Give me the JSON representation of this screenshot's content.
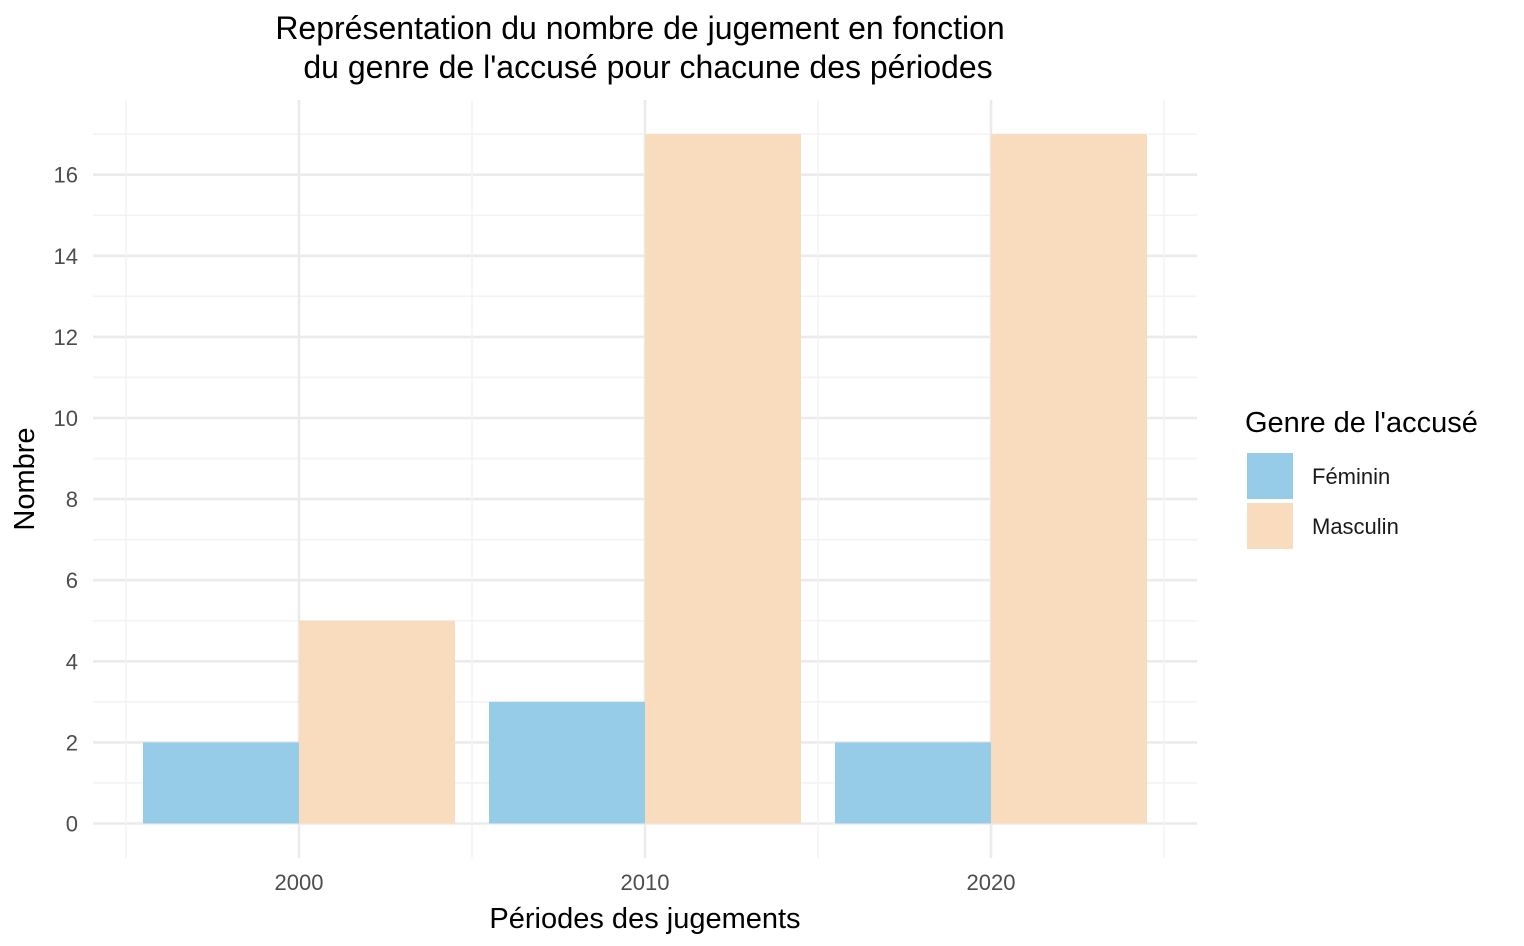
{
  "chart_data": {
    "type": "bar",
    "title": [
      "Représentation du nombre de jugement en fonction",
      "du genre de l'accusé pour chacune des périodes"
    ],
    "xlabel": "Périodes des jugements",
    "ylabel": "Nombre",
    "categories": [
      "2000",
      "2010",
      "2020"
    ],
    "series": [
      {
        "name": "Féminin",
        "values": [
          2,
          3,
          2
        ],
        "color": "#97cce8"
      },
      {
        "name": "Masculin",
        "values": [
          5,
          17,
          17
        ],
        "color": "#f9dbbd"
      }
    ],
    "ylim": [
      0,
      17
    ],
    "yticks": [
      0,
      2,
      4,
      6,
      8,
      10,
      12,
      14,
      16
    ],
    "grid": true,
    "legend": {
      "title": "Genre de l'accusé",
      "placement": "right"
    }
  }
}
